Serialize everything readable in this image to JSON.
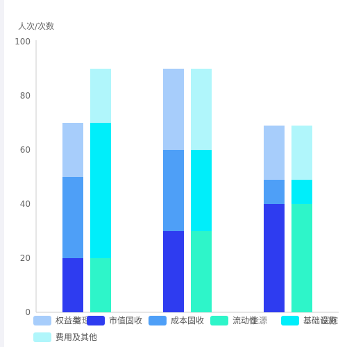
{
  "chart_data": {
    "type": "bar",
    "stacked": true,
    "grid": false,
    "ylabel": "人次/次数",
    "ylim": [
      0,
      100
    ],
    "yticks": [
      0,
      20,
      40,
      60,
      80,
      100
    ],
    "categories": [
      "",
      "",
      ""
    ],
    "stacks": [
      {
        "series": [
          {
            "name": "市值固收",
            "color": "#2e3cf0",
            "values": [
              20,
              30,
              40
            ]
          },
          {
            "name": "成本固收",
            "color": "#4e9ff7",
            "values": [
              30,
              30,
              9
            ]
          },
          {
            "name": "权益类",
            "color": "#a7cdfb",
            "values": [
              20,
              30,
              20
            ]
          }
        ]
      },
      {
        "series": [
          {
            "name": "流动性",
            "color": "#2ef5c9",
            "values": [
              20,
              30,
              40
            ]
          },
          {
            "name": "基础设施",
            "color": "#00eefa",
            "values": [
              50,
              30,
              9
            ]
          },
          {
            "name": "费用及其他",
            "color": "#b0f6fb",
            "values": [
              20,
              30,
              20
            ]
          }
        ]
      }
    ],
    "legend": {
      "position": "bottom",
      "items": [
        {
          "name": "权益类",
          "color": "#a7cdfb",
          "overlap_label": "管理"
        },
        {
          "name": "市值固收",
          "color": "#2e3cf0"
        },
        {
          "name": "成本固收",
          "color": "#4e9ff7"
        },
        {
          "name": "流动性",
          "color": "#2ef5c9",
          "overlap_label": "能源"
        },
        {
          "name": "基础设施",
          "color": "#00eefa",
          "overlap_label": "医院"
        },
        {
          "name": "费用及其他",
          "color": "#b0f6fb"
        }
      ]
    }
  }
}
